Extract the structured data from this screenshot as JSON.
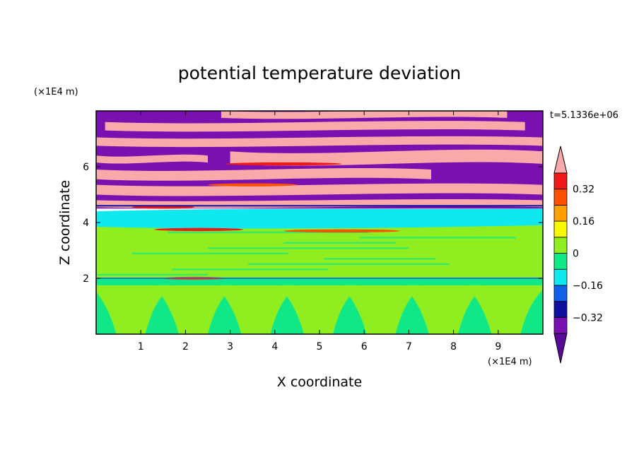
{
  "chart_data": {
    "type": "heatmap",
    "title": "potential temperature deviation",
    "xlabel": "X coordinate",
    "ylabel": "Z coordinate",
    "x_unit": "(×1E4 m)",
    "y_unit": "(×1E4 m)",
    "xlim": [
      0,
      10
    ],
    "ylim": [
      0,
      8
    ],
    "x_ticks": [
      "1",
      "2",
      "3",
      "4",
      "5",
      "6",
      "7",
      "8",
      "9"
    ],
    "y_ticks": [
      "2",
      "4",
      "6"
    ],
    "time_label": "t=5.1336e+06",
    "colorbar": {
      "levels": [
        -0.4,
        -0.32,
        -0.24,
        -0.16,
        -0.08,
        0,
        0.08,
        0.16,
        0.24,
        0.32,
        0.4
      ],
      "tick_labels": [
        "0.32",
        "0.16",
        "0",
        "−0.16",
        "−0.32"
      ],
      "tick_values": [
        0.32,
        0.16,
        0,
        -0.16,
        -0.32
      ],
      "colors": [
        "#5a0a98",
        "#7a10b0",
        "#1010a0",
        "#1060e8",
        "#10e8f0",
        "#10e888",
        "#90ee20",
        "#f8f800",
        "#ffa000",
        "#ff5000",
        "#f01818",
        "#f8aaaa"
      ],
      "extend": "both"
    },
    "fields": {
      "lower_band_z": [
        0,
        2.0
      ],
      "mid_band_z": [
        2.0,
        4.0
      ],
      "cyan_layer_z": [
        3.8,
        4.5
      ],
      "upper_band_z": [
        4.5,
        8.0
      ]
    }
  }
}
